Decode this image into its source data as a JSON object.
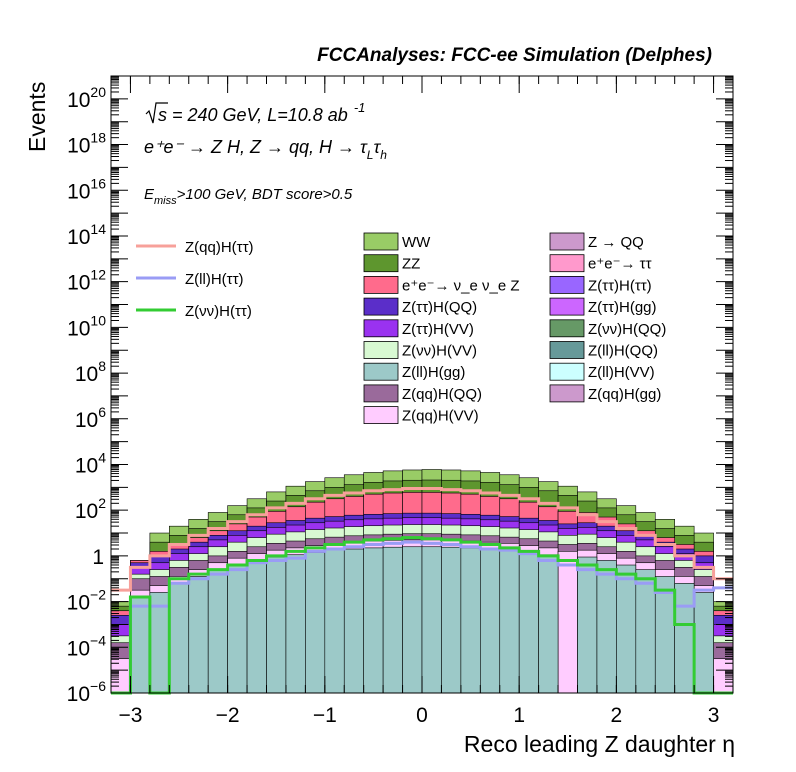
{
  "chart_data": {
    "type": "area",
    "title": "FCCAnalyses: FCC-ee Simulation (Delphes)",
    "xlabel": "Reco leading Z daughter η",
    "ylabel": "Events",
    "xlim": [
      -3.2,
      3.2
    ],
    "ylim_log10": [
      -6,
      21
    ],
    "yscale": "log",
    "grid": false,
    "x_ticks": [
      -3,
      -2,
      -1,
      0,
      1,
      2,
      3
    ],
    "x_tick_labels": [
      "−3",
      "−2",
      "−1",
      "0",
      "1",
      "2",
      "3"
    ],
    "y_ticks": [
      {
        "exp": -6,
        "base": "10",
        "sup": "−6"
      },
      {
        "exp": -4,
        "base": "10",
        "sup": "−4"
      },
      {
        "exp": -2,
        "base": "10",
        "sup": "−2"
      },
      {
        "exp": 0,
        "base": "1",
        "sup": ""
      },
      {
        "exp": 2,
        "base": "10",
        "sup": "2"
      },
      {
        "exp": 4,
        "base": "10",
        "sup": "4"
      },
      {
        "exp": 6,
        "base": "10",
        "sup": "6"
      },
      {
        "exp": 8,
        "base": "10",
        "sup": "8"
      },
      {
        "exp": 10,
        "base": "10",
        "sup": "10"
      },
      {
        "exp": 12,
        "base": "10",
        "sup": "12"
      },
      {
        "exp": 14,
        "base": "10",
        "sup": "14"
      },
      {
        "exp": 16,
        "base": "10",
        "sup": "16"
      },
      {
        "exp": 18,
        "base": "10",
        "sup": "18"
      },
      {
        "exp": 20,
        "base": "10",
        "sup": "20"
      }
    ],
    "annotations": {
      "sqrt_s": "s = 240 GeV, L=10.8 ab",
      "lumi_sup": "-1",
      "process": "e⁺e⁻ → Z H, Z → qq, H → τ",
      "process_sub_L": "L",
      "process_tau": "τ",
      "process_sub_h": "h",
      "cut_prefix": "E",
      "cut_sub": "miss",
      "cut_text": ">100 GeV, BDT score>0.5"
    },
    "bin_edges": [
      -3.2,
      -3.0,
      -2.8,
      -2.6,
      -2.4,
      -2.2,
      -2.0,
      -1.8,
      -1.6,
      -1.4,
      -1.2,
      -1.0,
      -0.8,
      -0.6,
      -0.4,
      -0.2,
      0.0,
      0.2,
      0.4,
      0.6,
      0.8,
      1.0,
      1.2,
      1.4,
      1.6,
      1.8,
      2.0,
      2.2,
      2.4,
      2.6,
      2.8,
      3.0,
      3.2
    ],
    "stack_order_bottom_to_top": [
      "Z(ll)H(gg)",
      "Z(qq)H(VV)",
      "Z(qq)H(QQ)",
      "Z(νν)H(VV)",
      "Z(ττ)H(VV)",
      "Z(ττ)H(QQ)",
      "e⁺e⁻→ ν_e ν_e Z",
      "ZZ",
      "WW"
    ],
    "stack_total_log10": [
      -2.0,
      -0.2,
      1.0,
      1.3,
      1.6,
      1.9,
      2.2,
      2.5,
      2.8,
      3.05,
      3.25,
      3.42,
      3.55,
      3.65,
      3.72,
      3.76,
      3.78,
      3.76,
      3.72,
      3.65,
      3.55,
      3.42,
      3.25,
      3.05,
      2.8,
      2.5,
      2.2,
      1.9,
      1.6,
      1.3,
      1.0,
      -2.0
    ],
    "series": [
      {
        "name": "Z(ll)H(gg)",
        "color": "#9cc9c8",
        "log10": [
          -6,
          -1.8,
          -1.6,
          -1.2,
          -0.9,
          -0.6,
          -0.4,
          -0.2,
          -0.05,
          0.05,
          0.15,
          0.25,
          0.3,
          0.35,
          0.38,
          0.4,
          0.4,
          0.38,
          0.35,
          0.3,
          0.25,
          0.15,
          0.05,
          -6,
          -0.05,
          -0.2,
          -0.4,
          -0.6,
          -0.9,
          -1.2,
          -1.6,
          -6
        ]
      },
      {
        "name": "Z(qq)H(VV)",
        "color": "#ffccff",
        "log10": [
          -4.5,
          -1.5,
          -1.3,
          -0.9,
          -0.6,
          -0.3,
          -0.1,
          0.1,
          0.25,
          0.35,
          0.45,
          0.55,
          0.6,
          0.65,
          0.68,
          0.7,
          0.7,
          0.68,
          0.65,
          0.6,
          0.55,
          0.45,
          0.35,
          0.2,
          0.25,
          0.1,
          -0.1,
          -0.3,
          -0.6,
          -0.9,
          -1.3,
          -4.5
        ]
      },
      {
        "name": "Z(qq)H(QQ)",
        "color": "#9a6a9b",
        "log10": [
          -3.8,
          -1.0,
          -0.9,
          -0.5,
          -0.2,
          0.0,
          0.2,
          0.4,
          0.55,
          0.65,
          0.75,
          0.82,
          0.88,
          0.92,
          0.95,
          0.97,
          0.97,
          0.95,
          0.92,
          0.88,
          0.82,
          0.75,
          0.65,
          0.5,
          0.55,
          0.4,
          0.2,
          0.0,
          -0.2,
          -0.5,
          -0.9,
          -3.8
        ]
      },
      {
        "name": "Z(νν)H(VV)",
        "color": "#d8f9d2",
        "log10": [
          -3.5,
          -0.8,
          -0.6,
          -0.2,
          0.1,
          0.4,
          0.6,
          0.8,
          0.95,
          1.05,
          1.15,
          1.22,
          1.28,
          1.32,
          1.35,
          1.37,
          1.37,
          1.35,
          1.32,
          1.28,
          1.22,
          1.15,
          1.05,
          0.9,
          0.95,
          0.8,
          0.6,
          0.4,
          0.1,
          -0.2,
          -0.6,
          -3.5
        ]
      },
      {
        "name": "Z(ττ)H(VV)",
        "color": "#9a32f0",
        "log10": [
          -3.0,
          -0.5,
          -0.3,
          0.1,
          0.4,
          0.7,
          0.9,
          1.1,
          1.25,
          1.35,
          1.45,
          1.52,
          1.58,
          1.62,
          1.65,
          1.67,
          1.67,
          1.65,
          1.62,
          1.58,
          1.52,
          1.45,
          1.35,
          1.2,
          1.25,
          1.1,
          0.9,
          0.7,
          0.4,
          0.1,
          -0.3,
          -3.0
        ]
      },
      {
        "name": "Z(ττ)H(QQ)",
        "color": "#5b2ec9",
        "log10": [
          -2.6,
          -0.3,
          0.0,
          0.3,
          0.6,
          0.9,
          1.1,
          1.3,
          1.45,
          1.55,
          1.65,
          1.72,
          1.78,
          1.82,
          1.85,
          1.87,
          1.87,
          1.85,
          1.82,
          1.78,
          1.72,
          1.65,
          1.55,
          1.4,
          1.45,
          1.3,
          1.1,
          0.9,
          0.6,
          0.3,
          0.0,
          -2.6
        ]
      },
      {
        "name": "e⁺e⁻→ ν_e ν_e Z",
        "color": "#ff6b8c",
        "log10": [
          -2.4,
          -0.2,
          0.2,
          0.5,
          0.8,
          1.1,
          1.4,
          1.7,
          1.95,
          2.15,
          2.35,
          2.5,
          2.6,
          2.7,
          2.75,
          2.78,
          2.78,
          2.75,
          2.7,
          2.6,
          2.5,
          2.35,
          2.15,
          1.95,
          1.9,
          1.7,
          1.4,
          1.1,
          0.8,
          0.5,
          0.2,
          -2.4
        ]
      },
      {
        "name": "ZZ",
        "color": "#5e962e",
        "log10": [
          -2.2,
          -0.2,
          0.6,
          0.9,
          1.2,
          1.5,
          1.8,
          2.1,
          2.4,
          2.65,
          2.85,
          3.0,
          3.12,
          3.22,
          3.28,
          3.31,
          3.32,
          3.31,
          3.28,
          3.22,
          3.12,
          3.0,
          2.85,
          2.65,
          2.4,
          2.1,
          1.8,
          1.5,
          1.2,
          0.9,
          0.6,
          -2.2
        ]
      },
      {
        "name": "WW",
        "color": "#99cc66",
        "log10": [
          -2.0,
          -0.2,
          1.0,
          1.3,
          1.6,
          1.9,
          2.2,
          2.5,
          2.8,
          3.05,
          3.25,
          3.42,
          3.55,
          3.65,
          3.72,
          3.76,
          3.78,
          3.76,
          3.72,
          3.65,
          3.55,
          3.42,
          3.25,
          3.05,
          2.8,
          2.5,
          2.2,
          1.9,
          1.6,
          1.3,
          1.0,
          -2.0
        ]
      }
    ],
    "signals": [
      {
        "name": "Z(qq)H(ττ)",
        "color": "#f7a09a",
        "log10": [
          -1.5,
          -0.5,
          0.0,
          0.5,
          0.9,
          1.2,
          1.5,
          1.8,
          2.1,
          2.3,
          2.5,
          2.65,
          2.75,
          2.85,
          2.9,
          2.95,
          2.95,
          2.9,
          2.85,
          2.75,
          2.65,
          2.5,
          2.3,
          2.1,
          1.8,
          1.5,
          1.2,
          0.9,
          0.5,
          0.0,
          -0.5,
          -1.0
        ]
      },
      {
        "name": "Z(ll)H(ττ)",
        "color": "#9a9cf5",
        "log10": [
          -6,
          -2.2,
          -2.2,
          -1.2,
          -1.0,
          -0.8,
          -0.6,
          -0.3,
          -0.2,
          -0.1,
          0.2,
          0.3,
          0.4,
          0.5,
          0.55,
          0.6,
          0.55,
          0.5,
          0.4,
          0.3,
          0.25,
          0.1,
          -0.2,
          -0.4,
          -0.6,
          -0.8,
          -1.0,
          -1.2,
          -1.6,
          -2.2,
          -1.5,
          -1.4
        ]
      },
      {
        "name": "Z(νν)H(ττ)",
        "color": "#33cc33",
        "log10": [
          -6,
          -1.8,
          -6,
          -1.0,
          -0.8,
          -0.6,
          -0.4,
          -0.2,
          0.0,
          0.2,
          0.35,
          0.5,
          0.6,
          0.7,
          0.75,
          0.8,
          0.75,
          0.7,
          0.6,
          0.5,
          0.35,
          0.2,
          0.0,
          -0.2,
          -0.4,
          -0.6,
          -0.8,
          -1.0,
          -1.5,
          -3.0,
          -6,
          -6
        ]
      }
    ],
    "legend_left": [
      {
        "name": "Z(qq)H(ττ)",
        "color": "#f7a09a",
        "style": "line"
      },
      {
        "name": "Z(ll)H(ττ)",
        "color": "#9a9cf5",
        "style": "line"
      },
      {
        "name": "Z(νν)H(ττ)",
        "color": "#33cc33",
        "style": "line"
      }
    ],
    "legend_mid": [
      {
        "name": "WW",
        "color": "#99cc66"
      },
      {
        "name": "ZZ",
        "color": "#5e962e"
      },
      {
        "name": "e⁺e⁻→ ν_e ν_e Z",
        "color": "#ff6b8c"
      },
      {
        "name": "Z(ττ)H(QQ)",
        "color": "#5b2ec9"
      },
      {
        "name": "Z(ττ)H(VV)",
        "color": "#9a32f0"
      },
      {
        "name": "Z(νν)H(VV)",
        "color": "#d8f9d2"
      },
      {
        "name": "Z(ll)H(gg)",
        "color": "#9cc9c8"
      },
      {
        "name": "Z(qq)H(QQ)",
        "color": "#9a6a9b"
      },
      {
        "name": "Z(qq)H(VV)",
        "color": "#ffccff"
      }
    ],
    "legend_right": [
      {
        "name": "Z → QQ",
        "color": "#cc99cc"
      },
      {
        "name": "e⁺e⁻→ ττ",
        "color": "#ff99cc"
      },
      {
        "name": "Z(ττ)H(ττ)",
        "color": "#9966ff"
      },
      {
        "name": "Z(ττ)H(gg)",
        "color": "#cc66ff"
      },
      {
        "name": "Z(νν)H(QQ)",
        "color": "#669966"
      },
      {
        "name": "Z(ll)H(QQ)",
        "color": "#669999"
      },
      {
        "name": "Z(ll)H(VV)",
        "color": "#ccffff"
      },
      {
        "name": "Z(qq)H(gg)",
        "color": "#cc99cc"
      }
    ],
    "legend_placement": "top, three columns"
  }
}
